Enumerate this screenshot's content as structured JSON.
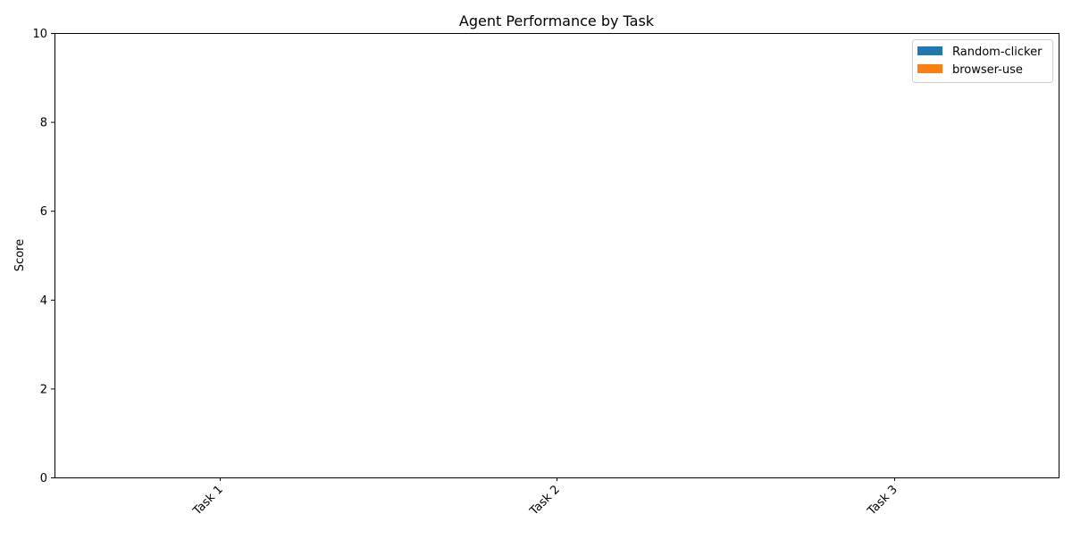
{
  "chart_data": {
    "type": "bar",
    "title": "Agent Performance by Task",
    "xlabel": "",
    "ylabel": "Score",
    "categories": [
      "Task 1",
      "Task 2",
      "Task 3"
    ],
    "series": [
      {
        "name": "Random-clicker",
        "color": "#1f77b4",
        "values": [
          0,
          0,
          0
        ]
      },
      {
        "name": "browser-use",
        "color": "#ff7f0e",
        "values": [
          0,
          0,
          0
        ]
      }
    ],
    "ylim": [
      0,
      10
    ],
    "yticks": [
      "0",
      "2",
      "4",
      "6",
      "8",
      "10"
    ],
    "grid": false,
    "legend_position": "top-right"
  }
}
